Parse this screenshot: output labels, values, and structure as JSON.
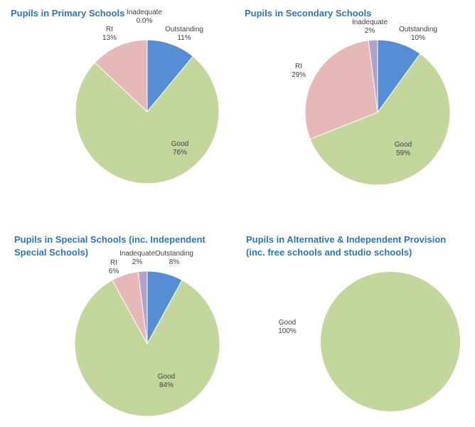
{
  "chart_data": [
    {
      "type": "pie",
      "title_lines": [
        "Pupils in Primary Schools"
      ],
      "categories": [
        "Outstanding",
        "Good",
        "RI",
        "Inadequate"
      ],
      "values": [
        11,
        76,
        13,
        0.0
      ],
      "value_labels": [
        "11%",
        "76%",
        "13%",
        "0.0%"
      ],
      "colors": [
        "#558ED5",
        "#C3D69B",
        "#E6B9B8",
        "#B3A2C7"
      ]
    },
    {
      "type": "pie",
      "title_lines": [
        "Pupils in Secondary Schools"
      ],
      "categories": [
        "Outstanding",
        "Good",
        "RI",
        "Inadequate"
      ],
      "values": [
        10,
        59,
        29,
        2
      ],
      "value_labels": [
        "10%",
        "59%",
        "29%",
        "2%"
      ],
      "colors": [
        "#558ED5",
        "#C3D69B",
        "#E6B9B8",
        "#B3A2C7"
      ]
    },
    {
      "type": "pie",
      "title_lines": [
        "Pupils in Special Schools (inc. Independent",
        "Special Schools)"
      ],
      "categories": [
        "Outstanding",
        "Good",
        "RI",
        "Inadequate"
      ],
      "values": [
        8,
        84,
        6,
        2
      ],
      "value_labels": [
        "8%",
        "84%",
        "6%",
        "2%"
      ],
      "colors": [
        "#558ED5",
        "#C3D69B",
        "#E6B9B8",
        "#B3A2C7"
      ]
    },
    {
      "type": "pie",
      "title_lines": [
        "Pupils in Alternative & Independent Provision",
        "(inc. free schools and studio schools)"
      ],
      "categories": [
        "Good"
      ],
      "values": [
        100
      ],
      "value_labels": [
        "100%"
      ],
      "colors": [
        "#C3D69B"
      ]
    }
  ]
}
